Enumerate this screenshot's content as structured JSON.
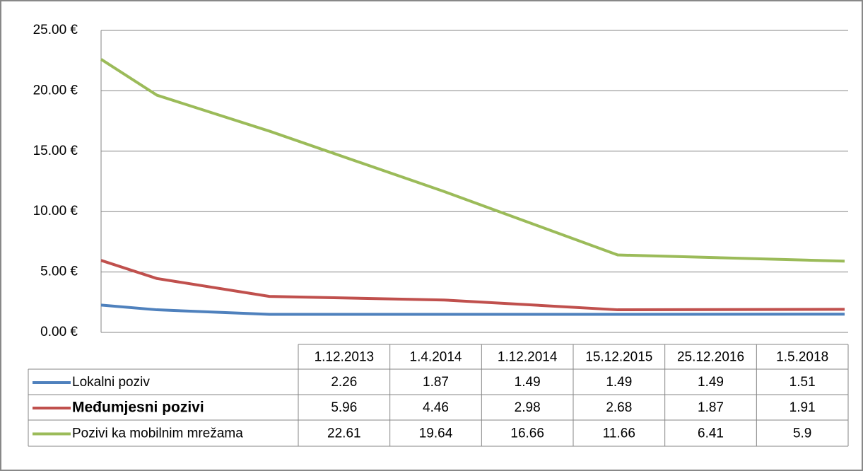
{
  "chart_data": {
    "type": "line",
    "categories": [
      "1.12.2013",
      "1.4.2014",
      "1.12.2014",
      "15.12.2015",
      "25.12.2016",
      "1.5.2018"
    ],
    "series": [
      {
        "name": "Lokalni poziv",
        "color": "#4f81bd",
        "values": [
          2.26,
          1.87,
          1.49,
          1.49,
          1.49,
          1.51
        ]
      },
      {
        "name": "Međumjesni  pozivi",
        "color": "#c0504d",
        "values": [
          5.96,
          4.46,
          2.98,
          2.68,
          1.87,
          1.91
        ]
      },
      {
        "name": "Pozivi ka mobilnim mrežama",
        "color": "#9bbb59",
        "values": [
          22.61,
          19.64,
          16.66,
          11.66,
          6.41,
          5.9
        ]
      }
    ],
    "ylim": [
      0,
      25
    ],
    "yticks": [
      {
        "value": 0,
        "label": "0.00 €"
      },
      {
        "value": 5,
        "label": "5.00 €"
      },
      {
        "value": 10,
        "label": "10.00 €"
      },
      {
        "value": 15,
        "label": "15.00 €"
      },
      {
        "value": 20,
        "label": "20.00 €"
      },
      {
        "value": 25,
        "label": "25.00 €"
      }
    ],
    "grid": true
  }
}
